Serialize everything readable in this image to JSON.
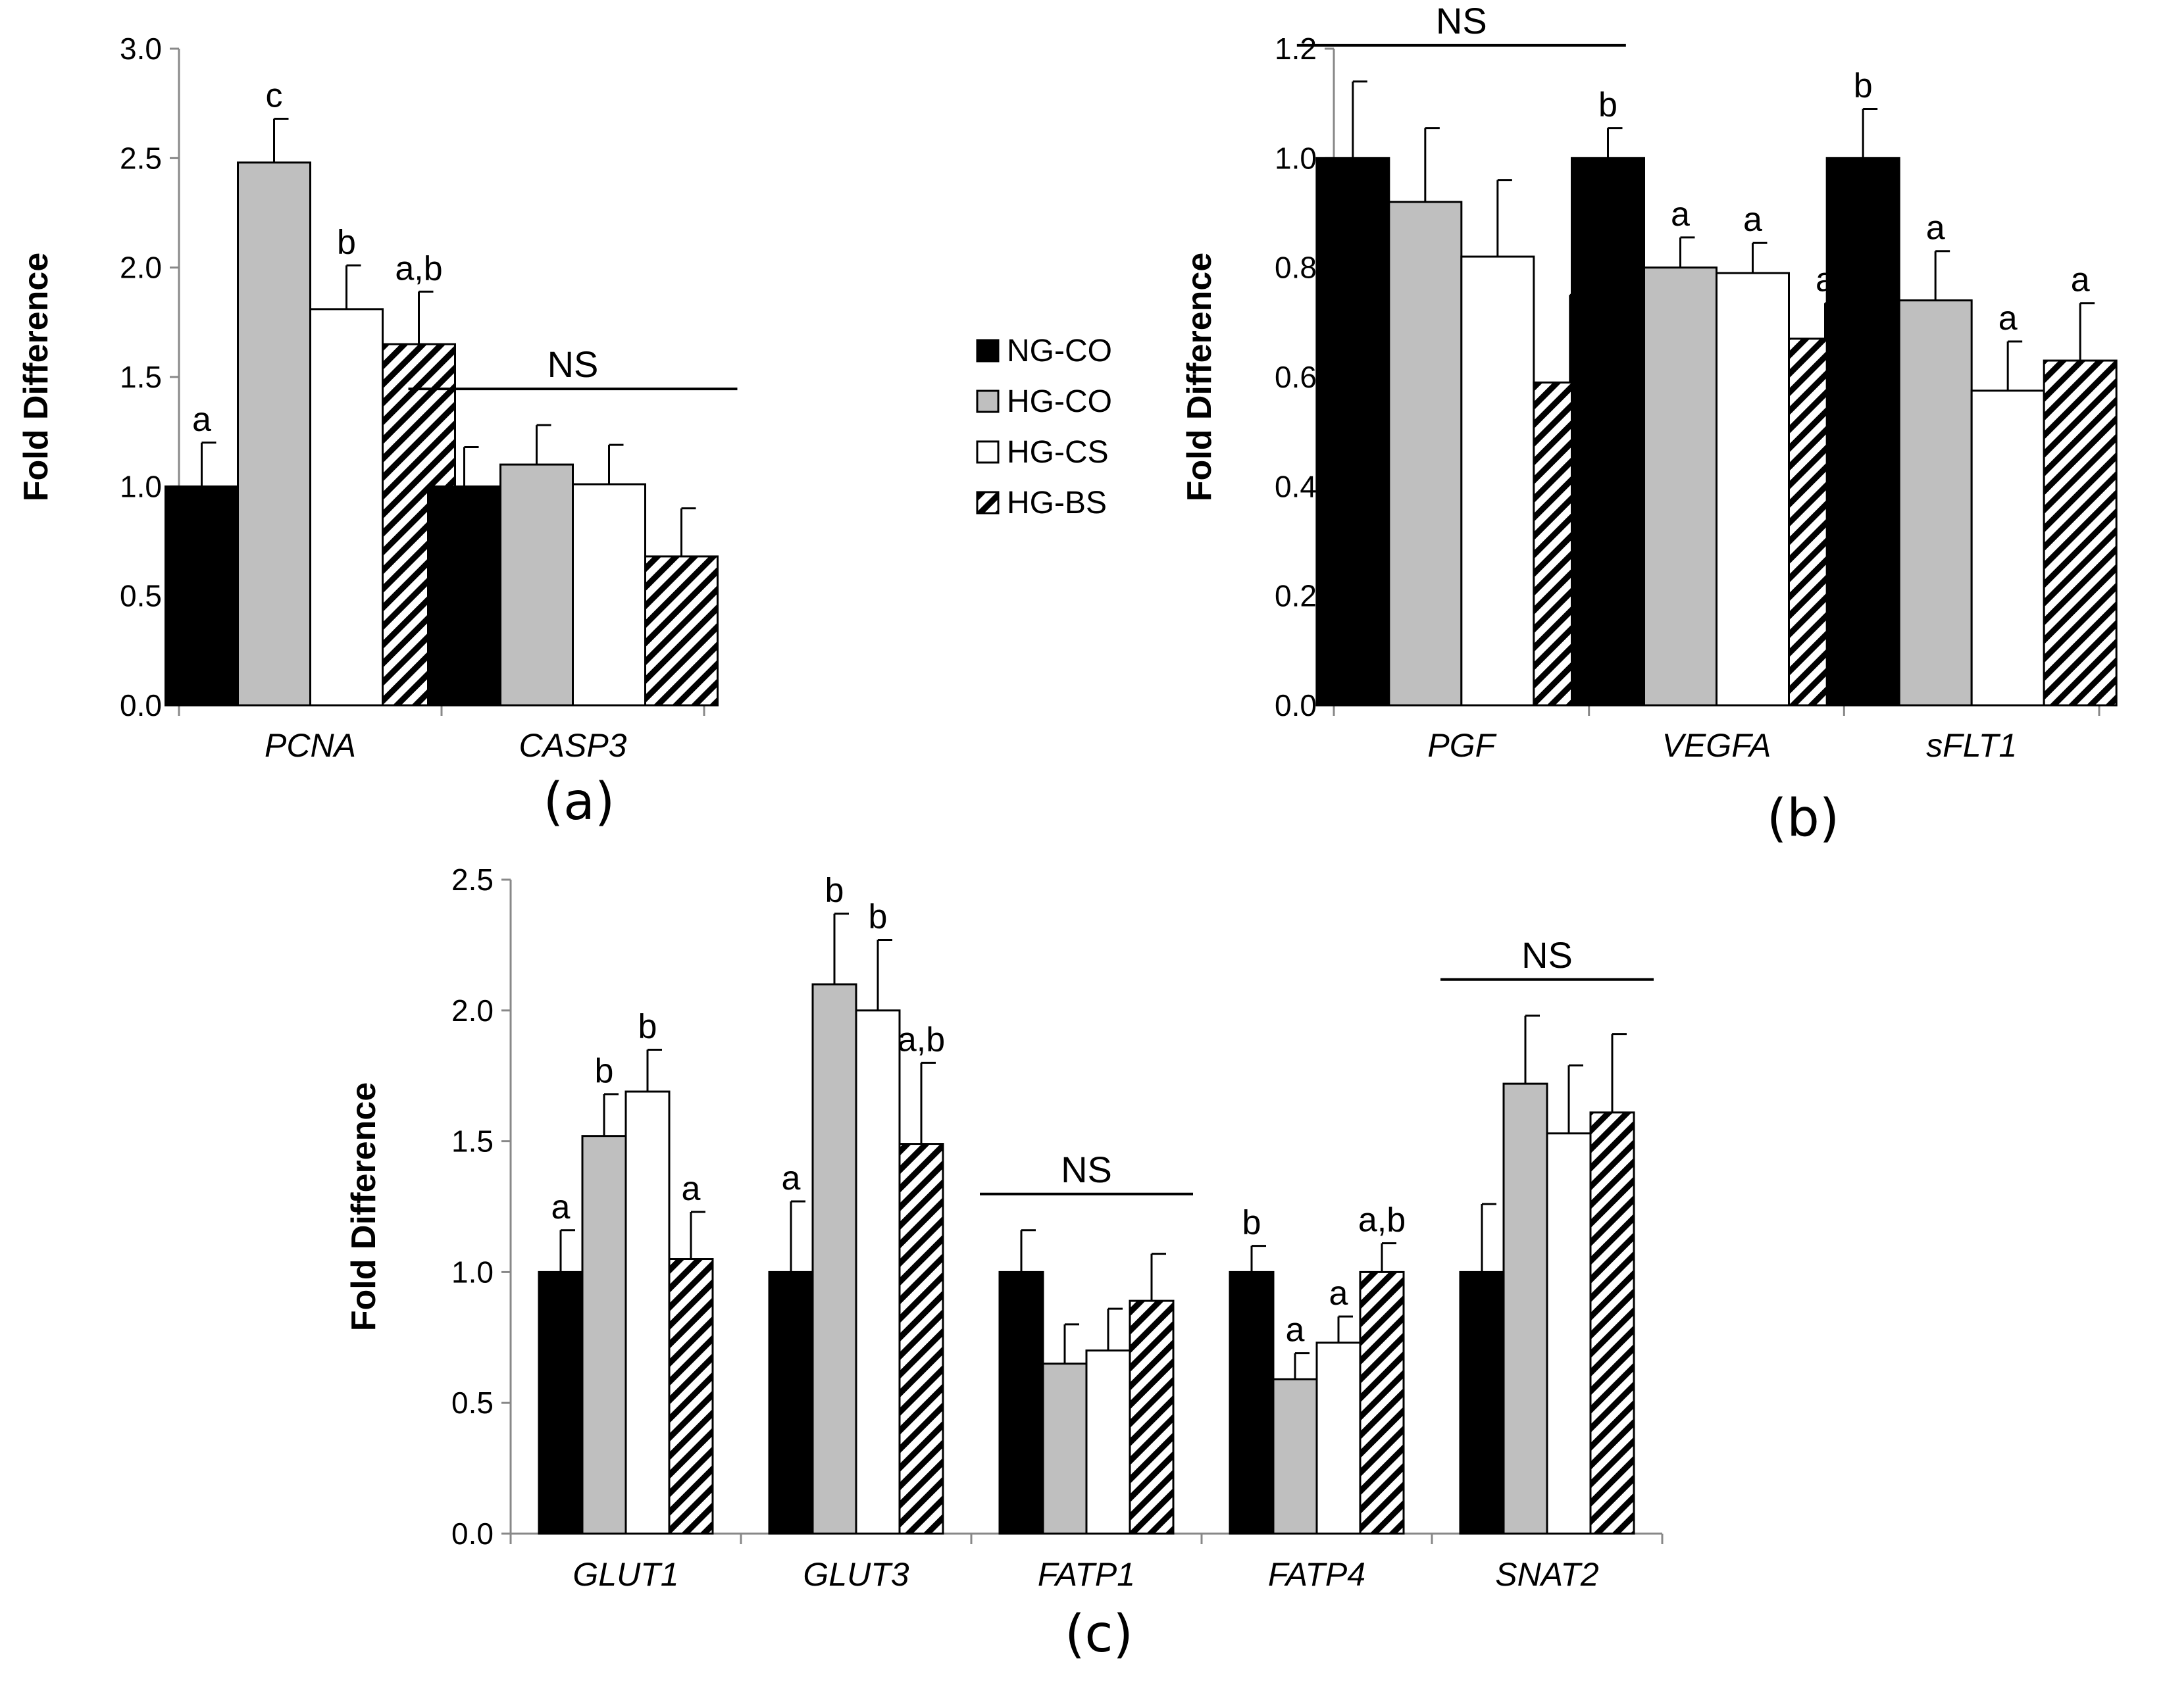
{
  "colors": {
    "NG-CO": "#000000",
    "HG-CO": "#bfbfbf",
    "HG-CS": "#ffffff",
    "HG-BS": "hatch"
  },
  "legend": [
    "NG-CO",
    "HG-CO",
    "HG-CS",
    "HG-BS"
  ],
  "chart_data": [
    {
      "type": "bar",
      "panel": "(a)",
      "ylabel": "Fold Difference",
      "ylim": [
        0,
        3.0
      ],
      "yticks": [
        "0.0",
        "0.5",
        "1.0",
        "1.5",
        "2.0",
        "2.5",
        "3.0"
      ],
      "categories": [
        "PCNA",
        "CASP3"
      ],
      "series": [
        {
          "name": "NG-CO",
          "values": [
            1.0,
            1.0
          ],
          "errors": [
            0.2,
            0.18
          ],
          "labels": [
            "a",
            ""
          ]
        },
        {
          "name": "HG-CO",
          "values": [
            2.48,
            1.1
          ],
          "errors": [
            0.2,
            0.18
          ],
          "labels": [
            "c",
            ""
          ]
        },
        {
          "name": "HG-CS",
          "values": [
            1.81,
            1.01
          ],
          "errors": [
            0.2,
            0.18
          ],
          "labels": [
            "b",
            ""
          ]
        },
        {
          "name": "HG-BS",
          "values": [
            1.65,
            0.68
          ],
          "errors": [
            0.24,
            0.22
          ],
          "labels": [
            "a,b",
            ""
          ]
        }
      ],
      "ns": [
        "",
        "NS"
      ]
    },
    {
      "type": "bar",
      "panel": "(b)",
      "ylabel": "Fold Difference",
      "ylim": [
        0,
        1.2
      ],
      "yticks": [
        "0.0",
        "0.2",
        "0.4",
        "0.6",
        "0.8",
        "1.0",
        "1.2"
      ],
      "categories": [
        "PGF",
        "VEGFA",
        "sFLT1"
      ],
      "series": [
        {
          "name": "NG-CO",
          "values": [
            1.0,
            1.0,
            1.0
          ],
          "errors": [
            0.14,
            0.055,
            0.09
          ],
          "labels": [
            "",
            "b",
            "b"
          ]
        },
        {
          "name": "HG-CO",
          "values": [
            0.92,
            0.8,
            0.74
          ],
          "errors": [
            0.135,
            0.055,
            0.09
          ],
          "labels": [
            "",
            "a",
            "a"
          ]
        },
        {
          "name": "HG-CS",
          "values": [
            0.82,
            0.79,
            0.575
          ],
          "errors": [
            0.14,
            0.055,
            0.09
          ],
          "labels": [
            "",
            "a",
            "a"
          ]
        },
        {
          "name": "HG-BS",
          "values": [
            0.59,
            0.67,
            0.63
          ],
          "errors": [
            0.16,
            0.065,
            0.105
          ],
          "labels": [
            "",
            "a",
            "a"
          ]
        }
      ],
      "ns": [
        "NS",
        "",
        ""
      ]
    },
    {
      "type": "bar",
      "panel": "(c)",
      "ylabel": "Fold Difference",
      "ylim": [
        0,
        2.5
      ],
      "yticks": [
        "0.0",
        "0.5",
        "1.0",
        "1.5",
        "2.0",
        "2.5"
      ],
      "categories": [
        "GLUT1",
        "GLUT3",
        "FATP1",
        "FATP4",
        "SNAT2"
      ],
      "series": [
        {
          "name": "NG-CO",
          "values": [
            1.0,
            1.0,
            1.0,
            1.0,
            1.0
          ],
          "errors": [
            0.16,
            0.27,
            0.16,
            0.1,
            0.26
          ],
          "labels": [
            "a",
            "a",
            "",
            "b",
            ""
          ]
        },
        {
          "name": "HG-CO",
          "values": [
            1.52,
            2.1,
            0.65,
            0.59,
            1.72
          ],
          "errors": [
            0.16,
            0.27,
            0.15,
            0.1,
            0.26
          ],
          "labels": [
            "b",
            "b",
            "",
            "a",
            ""
          ]
        },
        {
          "name": "HG-CS",
          "values": [
            1.69,
            2.0,
            0.7,
            0.73,
            1.53
          ],
          "errors": [
            0.16,
            0.27,
            0.16,
            0.1,
            0.26
          ],
          "labels": [
            "b",
            "b",
            "",
            "a",
            ""
          ]
        },
        {
          "name": "HG-BS",
          "values": [
            1.05,
            1.49,
            0.89,
            1.0,
            1.61
          ],
          "errors": [
            0.18,
            0.31,
            0.18,
            0.11,
            0.3
          ],
          "labels": [
            "a",
            "a,b",
            "",
            "a,b",
            ""
          ]
        }
      ],
      "ns": [
        "",
        "",
        "NS",
        "",
        "NS"
      ]
    }
  ]
}
